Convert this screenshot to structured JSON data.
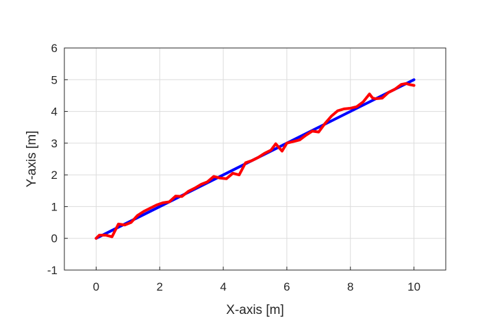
{
  "chart_data": {
    "type": "line",
    "xlabel": "X-axis [m]",
    "ylabel": "Y-axis [m]",
    "xlim": [
      -1,
      11
    ],
    "ylim": [
      -1,
      6
    ],
    "xticks": [
      0,
      2,
      4,
      6,
      8,
      10
    ],
    "yticks": [
      -1,
      0,
      1,
      2,
      3,
      4,
      5,
      6
    ],
    "grid": true,
    "series": [
      {
        "color": "#0000ff",
        "x": [
          0,
          10
        ],
        "y": [
          0,
          5
        ]
      },
      {
        "color": "#ff0000",
        "x": [
          0,
          0.1,
          0.3,
          0.5,
          0.7,
          0.9,
          1.1,
          1.3,
          1.5,
          1.7,
          1.9,
          2.1,
          2.3,
          2.5,
          2.7,
          2.9,
          3.1,
          3.3,
          3.5,
          3.7,
          3.9,
          4.1,
          4.3,
          4.5,
          4.7,
          4.9,
          5.1,
          5.3,
          5.5,
          5.65,
          5.85,
          6.0,
          6.2,
          6.4,
          6.6,
          6.8,
          7.0,
          7.2,
          7.4,
          7.6,
          7.8,
          8.0,
          8.2,
          8.4,
          8.6,
          8.7,
          8.8,
          9.0,
          9.2,
          9.4,
          9.6,
          9.75,
          9.85,
          10.0
        ],
        "y": [
          0.0,
          0.1,
          0.1,
          0.05,
          0.45,
          0.42,
          0.5,
          0.72,
          0.85,
          0.95,
          1.05,
          1.12,
          1.15,
          1.33,
          1.32,
          1.48,
          1.58,
          1.7,
          1.78,
          1.95,
          1.9,
          1.88,
          2.05,
          2.0,
          2.38,
          2.45,
          2.55,
          2.68,
          2.78,
          2.98,
          2.75,
          3.0,
          3.05,
          3.1,
          3.25,
          3.38,
          3.35,
          3.62,
          3.85,
          4.02,
          4.08,
          4.1,
          4.15,
          4.3,
          4.55,
          4.42,
          4.4,
          4.42,
          4.6,
          4.7,
          4.85,
          4.88,
          4.85,
          4.82
        ]
      }
    ]
  }
}
